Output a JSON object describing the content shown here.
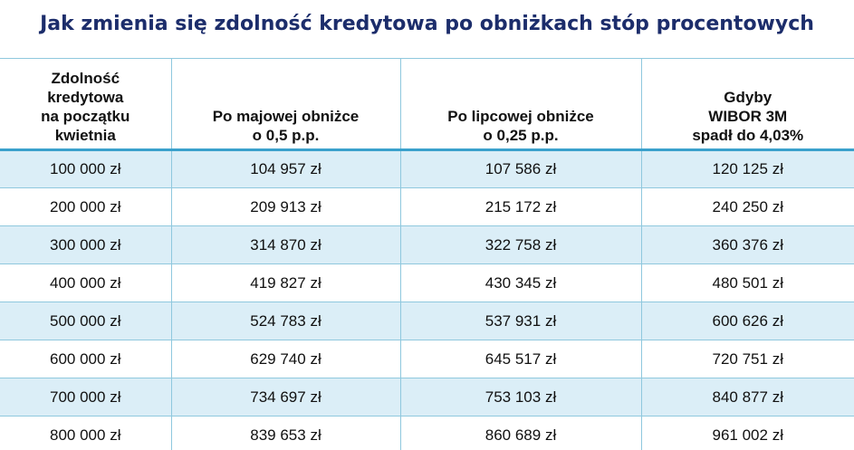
{
  "title": "Jak zmienia się zdolność kredytowa po obniżkach stóp procentowych",
  "headers": [
    [
      "Zdolność",
      "kredytowa",
      "na początku",
      "kwietnia"
    ],
    [
      "Po majowej obniżce",
      "o 0,5 p.p."
    ],
    [
      "Po lipcowej obniżce",
      "o 0,25 p.p."
    ],
    [
      "Gdyby",
      "WIBOR 3M",
      "spadł do 4,03%"
    ]
  ],
  "rows": [
    [
      "100 000 zł",
      "104 957 zł",
      "107 586 zł",
      "120 125 zł"
    ],
    [
      "200 000 zł",
      "209 913 zł",
      "215 172 zł",
      "240 250 zł"
    ],
    [
      "300 000 zł",
      "314 870 zł",
      "322 758 zł",
      "360 376 zł"
    ],
    [
      "400 000 zł",
      "419 827 zł",
      "430 345 zł",
      "480 501 zł"
    ],
    [
      "500 000 zł",
      "524 783 zł",
      "537 931 zł",
      "600 626 zł"
    ],
    [
      "600 000 zł",
      "629 740 zł",
      "645 517 zł",
      "720 751 zł"
    ],
    [
      "700 000 zł",
      "734 697 zł",
      "753 103 zł",
      "840 877 zł"
    ],
    [
      "800 000 zł",
      "839 653 zł",
      "860 689 zł",
      "961 002 zł"
    ]
  ],
  "colors": {
    "title": "#1c2d6b",
    "stripe": "#dbeef7",
    "grid": "#8fc8de",
    "header_rule": "#3aa1cc"
  }
}
